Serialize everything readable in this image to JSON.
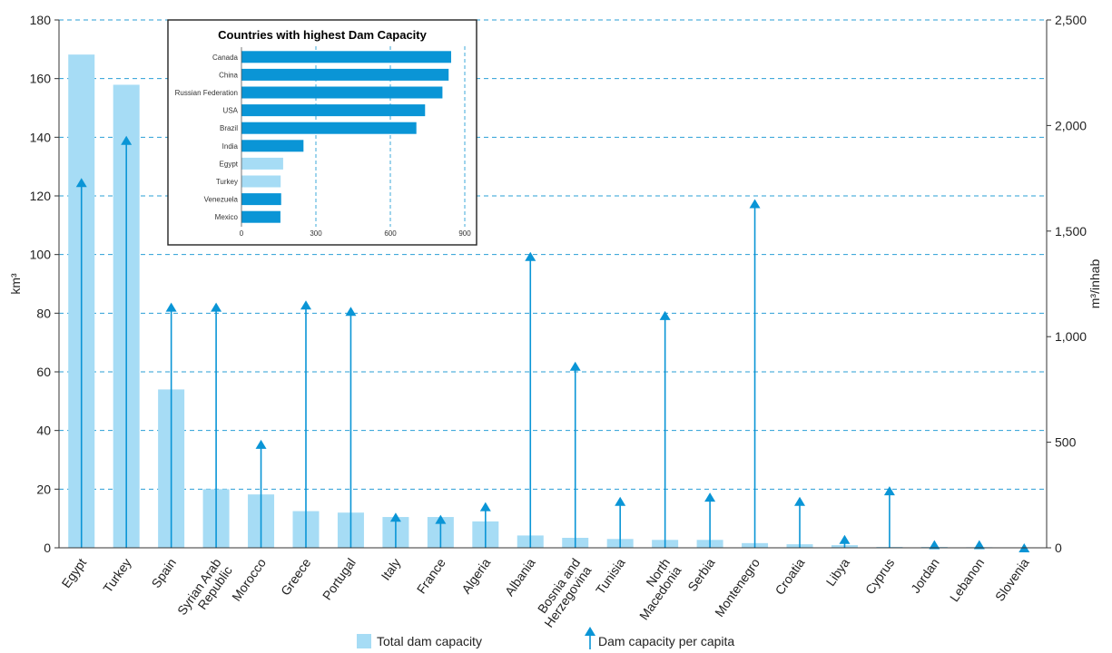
{
  "chart_data": [
    {
      "type": "bar",
      "ylabel": "km³",
      "y2label": "m³/inhab",
      "ylim": [
        0,
        180
      ],
      "y2lim": [
        0,
        2500
      ],
      "yticks": [
        0,
        20,
        40,
        60,
        80,
        100,
        120,
        140,
        160,
        180
      ],
      "y2ticks": [
        "0",
        "500",
        "1,000",
        "1,500",
        "2,000",
        "2,500"
      ],
      "y2tick_values": [
        0,
        500,
        1000,
        1500,
        2000,
        2500
      ],
      "grid": "horizontal dashed",
      "legend_position": "bottom",
      "categories": [
        "Egypt",
        "Turkey",
        "Spain",
        "Syrian Arab Republic",
        "Morocco",
        "Greece",
        "Portugal",
        "Italy",
        "France",
        "Algeria",
        "Albania",
        "Bosnia and Herzegovina",
        "Tunisia",
        "North Macedonia",
        "Serbia",
        "Montenegro",
        "Croatia",
        "Libya",
        "Cyprus",
        "Jordan",
        "Lebanon",
        "Slovenia"
      ],
      "category_lines": [
        [
          "Egypt"
        ],
        [
          "Turkey"
        ],
        [
          "Spain"
        ],
        [
          "Syrian Arab",
          "Republic"
        ],
        [
          "Morocco"
        ],
        [
          "Greece"
        ],
        [
          "Portugal"
        ],
        [
          "Italy"
        ],
        [
          "France"
        ],
        [
          "Algeria"
        ],
        [
          "Albania"
        ],
        [
          "Bosnia and",
          "Herzegovina"
        ],
        [
          "Tunisia"
        ],
        [
          "North",
          "Macedonia"
        ],
        [
          "Serbia"
        ],
        [
          "Montenegro"
        ],
        [
          "Croatia"
        ],
        [
          "Libya"
        ],
        [
          "Cyprus"
        ],
        [
          "Jordan"
        ],
        [
          "Lebanon"
        ],
        [
          "Slovenia"
        ]
      ],
      "series": [
        {
          "name": "Total dam capacity",
          "kind": "bar",
          "axis": "left",
          "color": "#a6dcf5",
          "values": [
            168.2,
            157.9,
            54.0,
            20.0,
            18.2,
            12.5,
            12.0,
            10.5,
            10.5,
            9.0,
            4.2,
            3.4,
            3.0,
            2.7,
            2.7,
            1.6,
            1.2,
            0.9,
            0.3,
            0.3,
            0.2,
            0.1
          ]
        },
        {
          "name": "Dam capacity per capita",
          "kind": "arrow",
          "axis": "right",
          "color": "#0a95d6",
          "values": [
            1730,
            1930,
            1140,
            1140,
            490,
            1150,
            1120,
            145,
            135,
            195,
            1380,
            860,
            220,
            1100,
            240,
            1630,
            220,
            40,
            270,
            15,
            15,
            0
          ]
        }
      ]
    },
    {
      "type": "bar",
      "orientation": "horizontal",
      "title": "Countries with highest Dam Capacity",
      "xlim": [
        0,
        900
      ],
      "xticks": [
        0,
        300,
        600,
        900
      ],
      "grid": "vertical dashed",
      "categories": [
        "Canada",
        "China",
        "Russian Federation",
        "USA",
        "Brazil",
        "India",
        "Egypt",
        "Turkey",
        "Venezuela",
        "Mexico"
      ],
      "values": [
        845,
        835,
        810,
        740,
        705,
        250,
        168,
        158,
        160,
        157
      ],
      "colors": [
        "#0a95d6",
        "#0a95d6",
        "#0a95d6",
        "#0a95d6",
        "#0a95d6",
        "#0a95d6",
        "#a6dcf5",
        "#a6dcf5",
        "#0a95d6",
        "#0a95d6"
      ]
    }
  ]
}
